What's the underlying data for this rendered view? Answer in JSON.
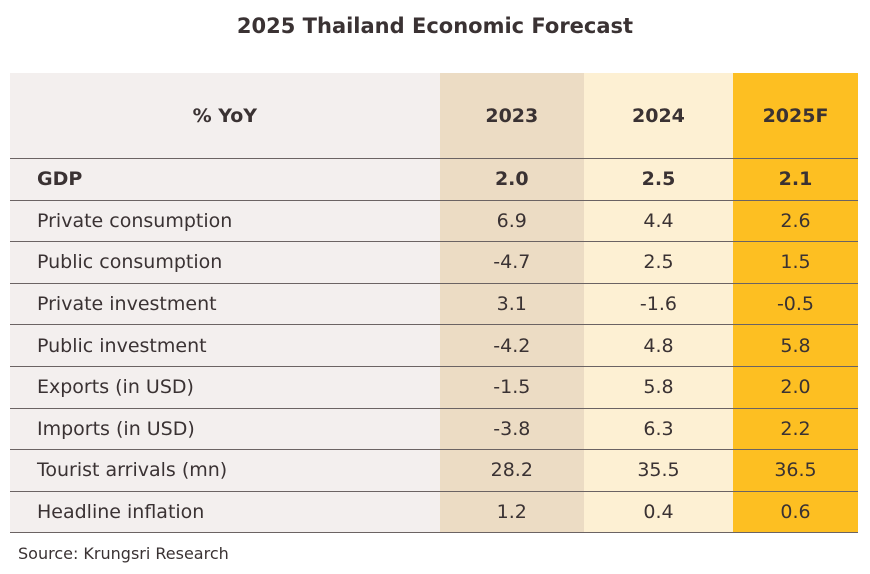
{
  "title": "2025 Thailand Economic Forecast",
  "source": "Source: Krungsri Research",
  "colors": {
    "label_col": "#f3efee",
    "col_2023": "#ecdcc4",
    "col_2024": "#fdf0d3",
    "col_2025F": "#fdbf22"
  },
  "chart_data": {
    "type": "table",
    "title": "2025 Thailand Economic Forecast",
    "columns": [
      "% YoY",
      "2023",
      "2024",
      "2025F"
    ],
    "rows": [
      [
        "GDP",
        "2.0",
        "2.5",
        "2.1"
      ],
      [
        "Private consumption",
        "6.9",
        "4.4",
        "2.6"
      ],
      [
        "Public consumption",
        "-4.7",
        "2.5",
        "1.5"
      ],
      [
        "Private investment",
        "3.1",
        "-1.6",
        "-0.5"
      ],
      [
        "Public investment",
        "-4.2",
        "4.8",
        "5.8"
      ],
      [
        "Exports (in USD)",
        "-1.5",
        "5.8",
        "2.0"
      ],
      [
        "Imports (in USD)",
        "-3.8",
        "6.3",
        "2.2"
      ],
      [
        "Tourist arrivals (mn)",
        "28.2",
        "35.5",
        "36.5"
      ],
      [
        "Headline inflation",
        "1.2",
        "0.4",
        "0.6"
      ]
    ]
  }
}
